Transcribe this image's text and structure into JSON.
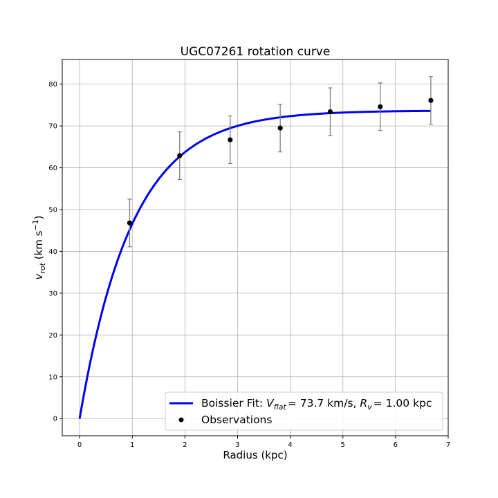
{
  "chart_data": {
    "type": "line",
    "title": "UGC07261 rotation curve",
    "xlabel": "Radius (kpc)",
    "ylabel": "v_rot (km s^-1)",
    "xlim": [
      -0.33,
      7.0
    ],
    "ylim": [
      -4.1,
      85.9
    ],
    "xticks": [
      0,
      1,
      2,
      3,
      4,
      5,
      6,
      7
    ],
    "yticks": [
      0,
      10,
      20,
      30,
      40,
      50,
      60,
      70,
      80
    ],
    "grid": true,
    "legend_position": "lower-right",
    "fit": {
      "name": "Boissier Fit: V_flat = 73.7 km/s, R_v = 1.00 kpc",
      "model": "V_flat * (1 - exp(-r / R_v))",
      "V_flat": 73.7,
      "R_v": 1.0,
      "x_range": [
        0,
        6.67
      ],
      "color": "#0000ee"
    },
    "observations": {
      "name": "Observations",
      "color": "#000000",
      "errorbar_color": "#808080",
      "x": [
        0.95,
        1.9,
        2.86,
        3.81,
        4.76,
        5.71,
        6.67
      ],
      "y": [
        46.8,
        62.9,
        66.7,
        69.5,
        73.4,
        74.6,
        76.1
      ],
      "yerr": [
        5.7,
        5.7,
        5.7,
        5.7,
        5.7,
        5.7,
        5.7
      ]
    }
  },
  "legend": {
    "fit_prefix": "Boissier Fit: ",
    "fit_vflat_var": "V",
    "fit_vflat_sub": "flat",
    "fit_vflat_val": "= 73.7 km/s, ",
    "fit_rv_var": "R",
    "fit_rv_sub": "v",
    "fit_rv_val": "= 1.00 kpc",
    "obs_label": "Observations"
  },
  "ylabel_parts": {
    "var": "v",
    "sub": "rot",
    "unit_open": " (km s",
    "sup": "−1",
    "unit_close": ")"
  }
}
